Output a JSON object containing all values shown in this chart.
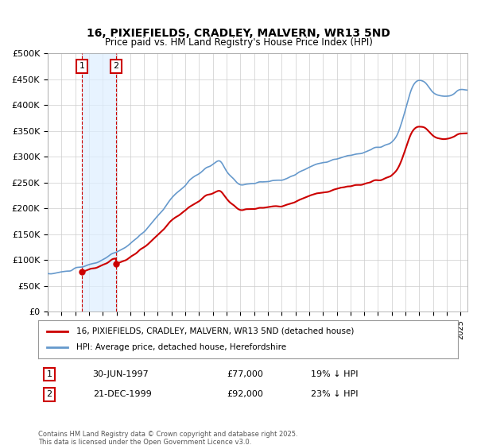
{
  "title": "16, PIXIEFIELDS, CRADLEY, MALVERN, WR13 5ND",
  "subtitle": "Price paid vs. HM Land Registry's House Price Index (HPI)",
  "legend_line1": "16, PIXIEFIELDS, CRADLEY, MALVERN, WR13 5ND (detached house)",
  "legend_line2": "HPI: Average price, detached house, Herefordshire",
  "sale1_date": "30-JUN-1997",
  "sale1_price": "£77,000",
  "sale1_hpi": "19% ↓ HPI",
  "sale2_date": "21-DEC-1999",
  "sale2_price": "£92,000",
  "sale2_hpi": "23% ↓ HPI",
  "footer": "Contains HM Land Registry data © Crown copyright and database right 2025.\nThis data is licensed under the Open Government Licence v3.0.",
  "sale1_x": 1997.5,
  "sale2_x": 1999.97,
  "hpi_color": "#6699CC",
  "price_color": "#CC0000",
  "sale_marker_color": "#CC0000",
  "shade_color": "#DDEEFF",
  "grid_color": "#CCCCCC",
  "bg_color": "#FFFFFF",
  "ylim": [
    0,
    500000
  ],
  "xlim_start": 1995.0,
  "xlim_end": 2025.5
}
